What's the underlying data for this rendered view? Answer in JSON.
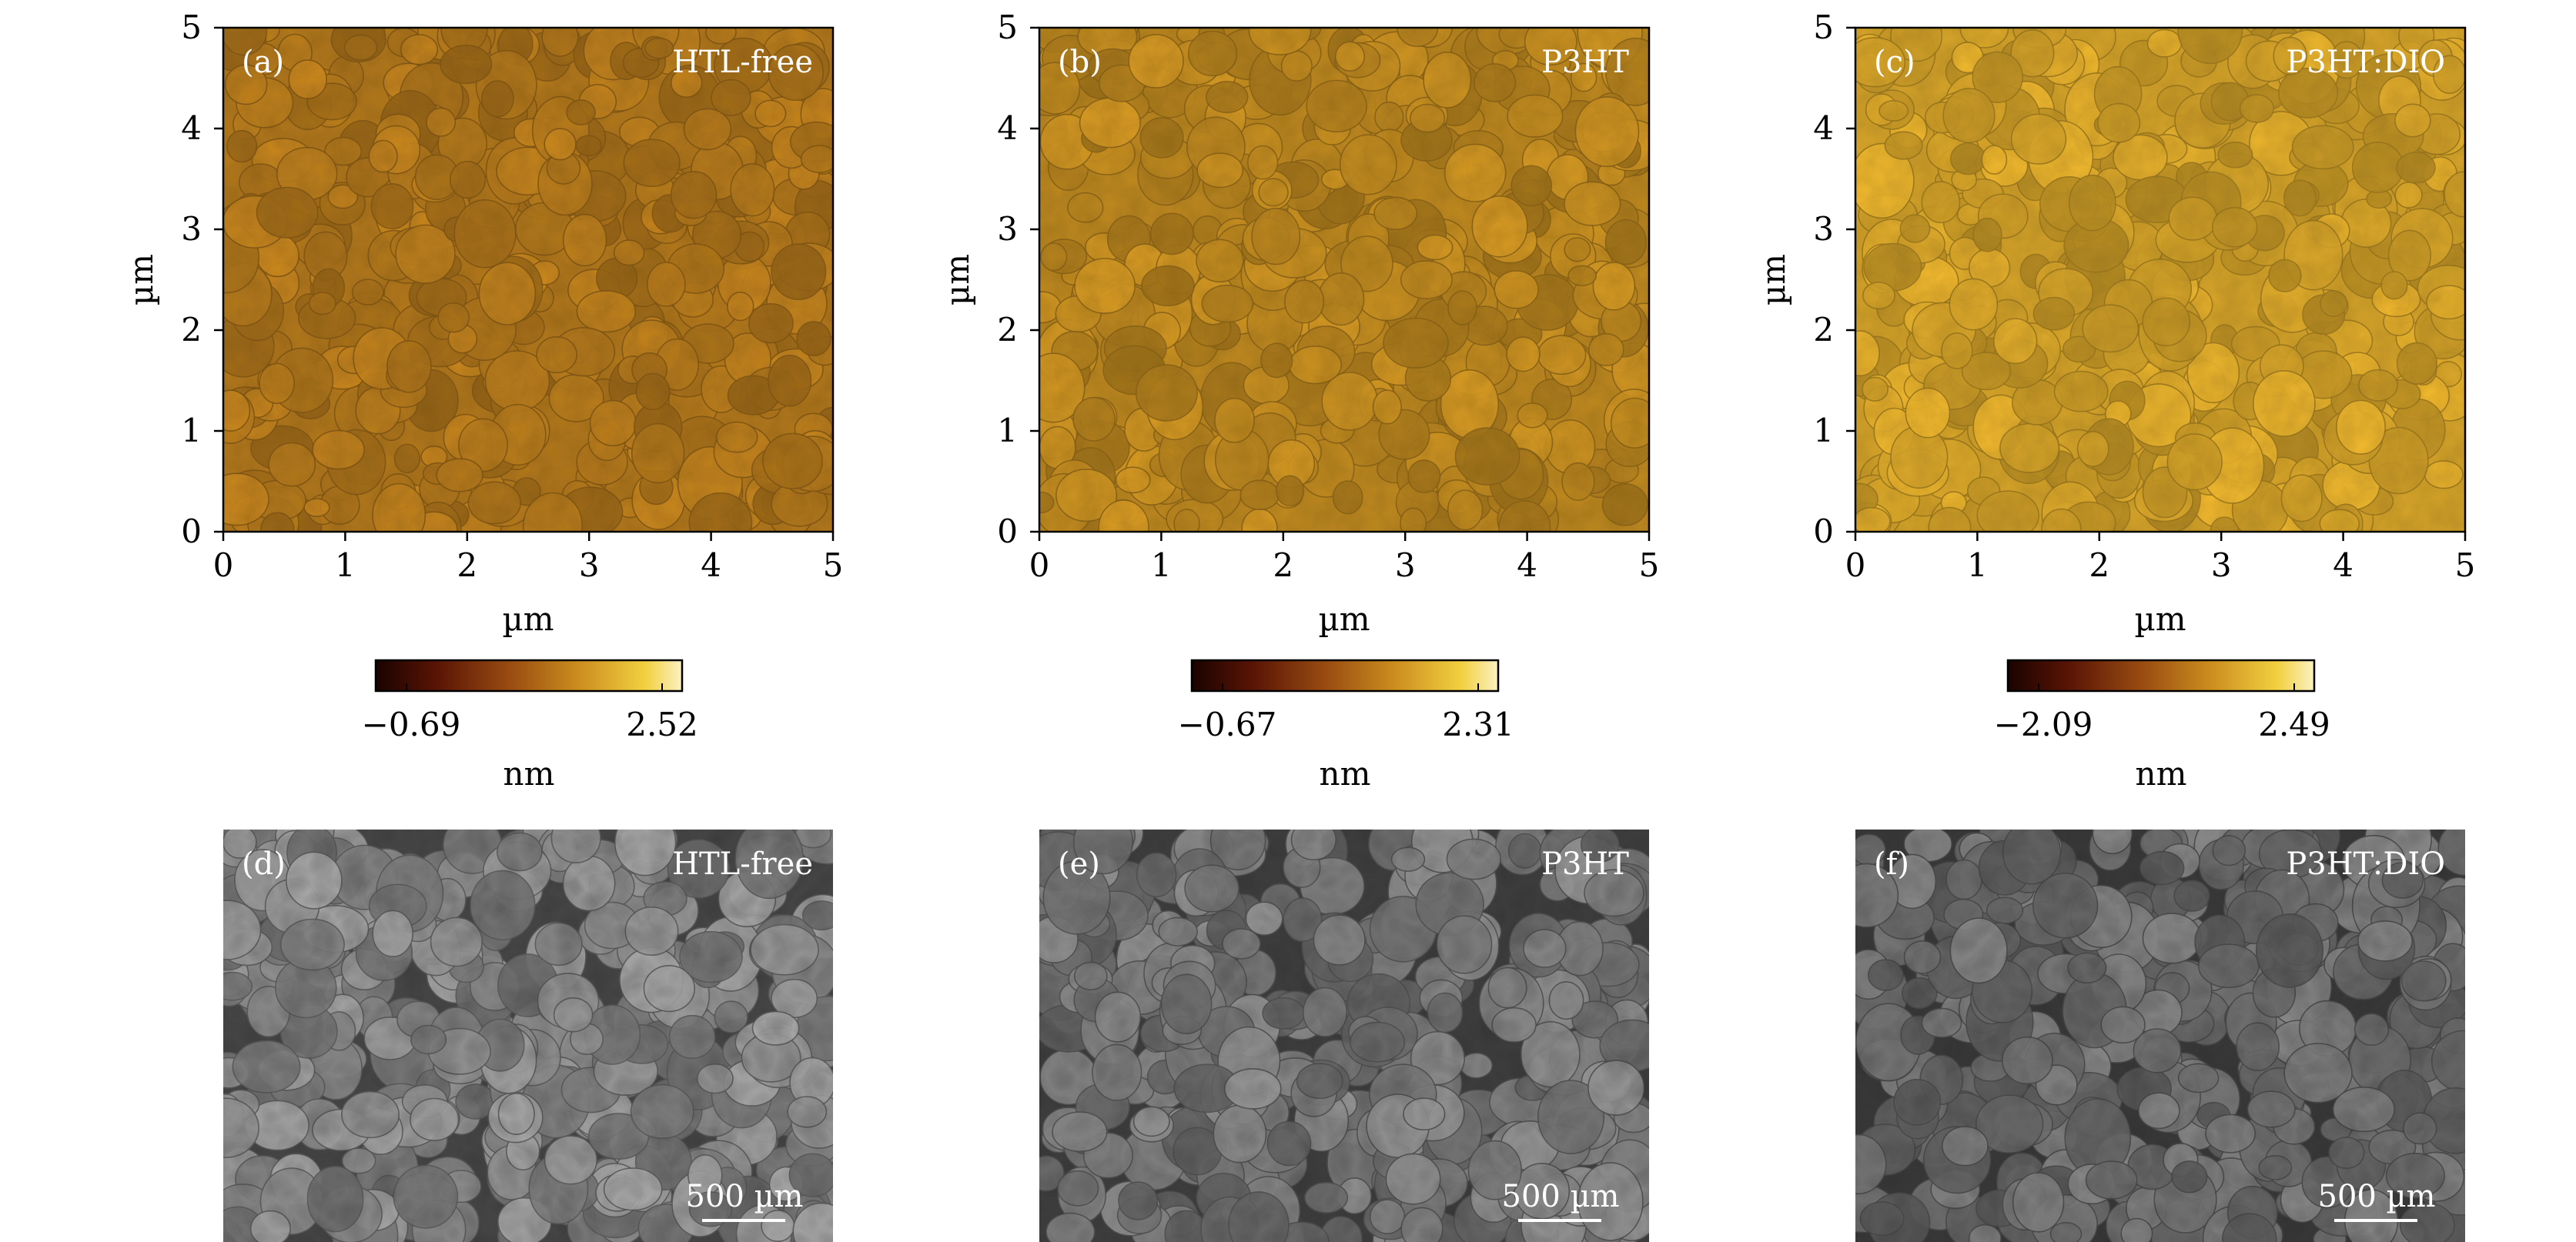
{
  "afm_panels": [
    {
      "tag": "(a)",
      "label": "HTL-free",
      "cb_min": "−0.69",
      "cb_max": "2.52",
      "tone": "#b4791c"
    },
    {
      "tag": "(b)",
      "label": "P3HT",
      "cb_min": "−0.67",
      "cb_max": "2.31",
      "tone": "#c08a20"
    },
    {
      "tag": "(c)",
      "label": "P3HT:DIO",
      "cb_min": "−2.09",
      "cb_max": "2.49",
      "tone": "#d7a52a"
    }
  ],
  "sem_panels": [
    {
      "tag": "(d)",
      "label": "HTL-free",
      "scale_bar": "500 µm",
      "tone": "#7d7d7d"
    },
    {
      "tag": "(e)",
      "label": "P3HT",
      "scale_bar": "500 µm",
      "tone": "#6f6f6f"
    },
    {
      "tag": "(f)",
      "label": "P3HT:DIO",
      "scale_bar": "500 µm",
      "tone": "#666666"
    }
  ],
  "axis": {
    "ticks": [
      "0",
      "1",
      "2",
      "3",
      "4",
      "5"
    ],
    "xlabel": "µm",
    "ylabel": "µm"
  },
  "colorbar": {
    "unit": "nm",
    "gradient": [
      "#1a0300",
      "#5a1405",
      "#9c4f12",
      "#c98a1d",
      "#f2d040",
      "#fbf2c2"
    ]
  }
}
